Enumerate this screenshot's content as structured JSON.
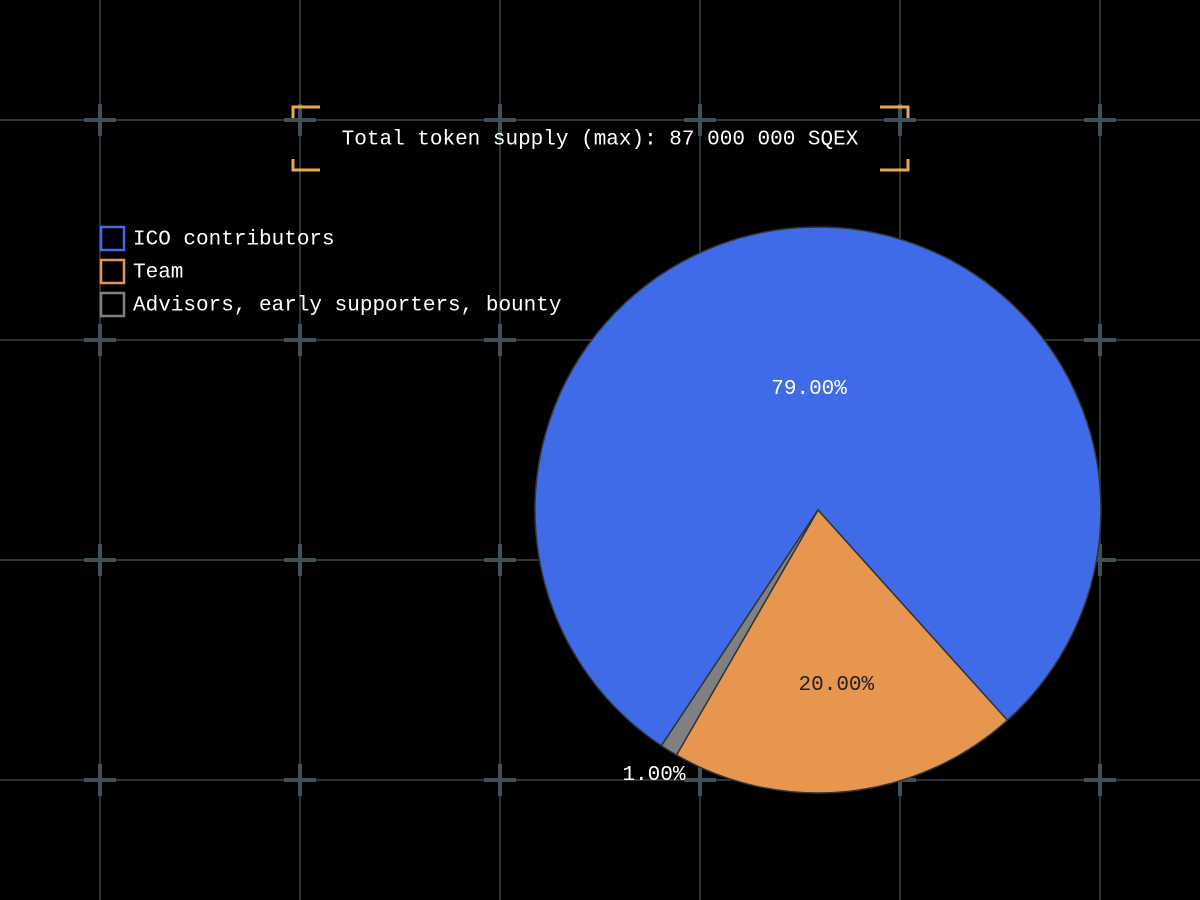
{
  "chart_data": {
    "type": "pie",
    "title": "Total token supply (max): 87 000 000 SQEX",
    "categories": [
      "ICO contributors",
      "Team",
      "Advisors, early supporters, bounty"
    ],
    "values": [
      79,
      20,
      1
    ],
    "value_labels": [
      "79.00%",
      "20.00%",
      "1.00%"
    ],
    "colors": [
      "#3f6be8",
      "#e6964f",
      "#808080"
    ],
    "legend": "top-left"
  }
}
